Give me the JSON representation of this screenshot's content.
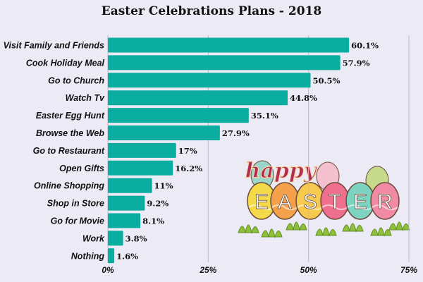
{
  "chart_data": {
    "type": "bar",
    "orientation": "horizontal",
    "title": "Easter Celebrations Plans - 2018",
    "categories": [
      "Visit Family and Friends",
      "Cook Holiday Meal",
      "Go to Church",
      "Watch Tv",
      "Easter Egg Hunt",
      "Browse the Web",
      "Go to Restaurant",
      "Open Gifts",
      "Online Shopping",
      "Shop in Store",
      "Go for Movie",
      "Work",
      "Nothing"
    ],
    "values": [
      60.1,
      57.9,
      50.5,
      44.8,
      35.1,
      27.9,
      17,
      16.2,
      11,
      9.2,
      8.1,
      3.8,
      1.6
    ],
    "value_labels": [
      "60.1%",
      "57.9%",
      "50.5%",
      "44.8%",
      "35.1%",
      "27.9%",
      "17%",
      "16.2%",
      "11%",
      "9.2%",
      "8.1%",
      "3.8%",
      "1.6%"
    ],
    "xlim": [
      0,
      75
    ],
    "xticks": [
      0,
      25,
      50,
      75
    ],
    "xtick_labels": [
      "0%",
      "25%",
      "50%",
      "75%"
    ],
    "grid": true,
    "bar_color": "#0aada0",
    "gridline_color": "#bdbbc9"
  },
  "decoration": {
    "wordmark_top": "happy",
    "wordmark_letters": [
      "E",
      "A",
      "S",
      "T",
      "E",
      "R"
    ],
    "egg_colors": [
      "#f4d94a",
      "#f5a04a",
      "#f7c94f",
      "#ef6f8e",
      "#7bd3c0",
      "#f08aa5"
    ]
  }
}
